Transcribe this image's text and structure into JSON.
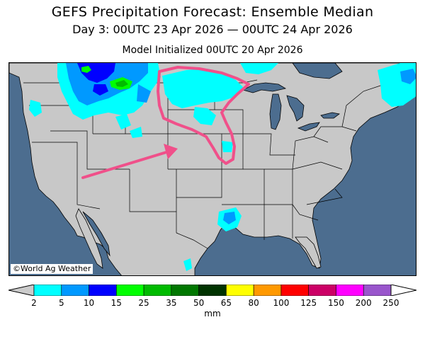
{
  "title": "GEFS Precipitation Forecast: Ensemble Median",
  "subtitle": "Day 3: 00UTC 23 Apr 2026 — 00UTC 24 Apr 2026",
  "init": "Model Initialized 00UTC 20 Apr 2026",
  "credit": "©World Ag Weather",
  "colorbar": {
    "unit": "mm",
    "ticks": [
      "2",
      "5",
      "10",
      "15",
      "25",
      "35",
      "50",
      "65",
      "80",
      "100",
      "125",
      "150",
      "200",
      "250"
    ],
    "colors": [
      "#cbcbcb",
      "#00ffff",
      "#0099ff",
      "#0000ff",
      "#00ff00",
      "#00bb00",
      "#007700",
      "#003300",
      "#ffff00",
      "#ff9900",
      "#ff0000",
      "#cc0066",
      "#ff00ff",
      "#9955cc",
      "#ffffff"
    ]
  },
  "colors": {
    "ocean": "#4c6d8f",
    "land": "#c8c8c8",
    "annotation": "#f0508a"
  }
}
